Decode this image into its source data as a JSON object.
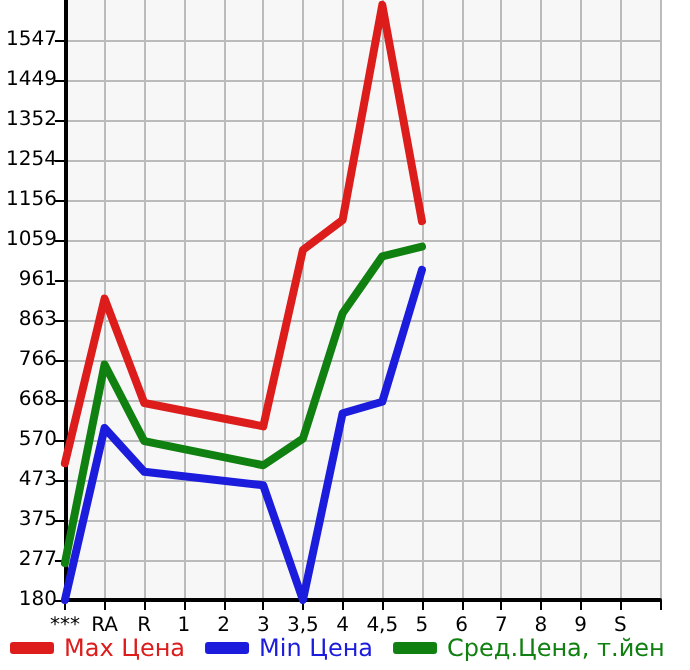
{
  "chart_data": {
    "type": "line",
    "categories": [
      "***",
      "RA",
      "R",
      "1",
      "2",
      "3",
      "3,5",
      "4",
      "4,5",
      "5",
      "6",
      "7",
      "8",
      "9",
      "S",
      null
    ],
    "series": [
      {
        "name": "Max Цена",
        "color": "#dd1c1c",
        "values": [
          514,
          916,
          661,
          null,
          null,
          604,
          1035,
          1108,
          1633,
          1105,
          null,
          null,
          null,
          null,
          null,
          null
        ]
      },
      {
        "name": "Min Цена",
        "color": "#1c1cdd",
        "values": [
          180,
          600,
          493,
          null,
          null,
          460,
          180,
          636,
          664,
          986,
          null,
          null,
          null,
          null,
          null,
          null
        ]
      },
      {
        "name": "Сред.Цена, т.йен",
        "color": "#108010",
        "values": [
          270,
          755,
          568,
          null,
          null,
          509,
          574,
          880,
          1019,
          1043,
          null,
          null,
          null,
          null,
          null,
          null
        ]
      }
    ],
    "ylim": [
      180,
      1645
    ],
    "yticks": [
      180,
      277,
      375,
      473,
      570,
      668,
      766,
      863,
      961,
      1059,
      1156,
      1254,
      1352,
      1449,
      1547
    ],
    "grid": true,
    "legend": "bottom",
    "marker": "none",
    "line_style": "solid"
  }
}
